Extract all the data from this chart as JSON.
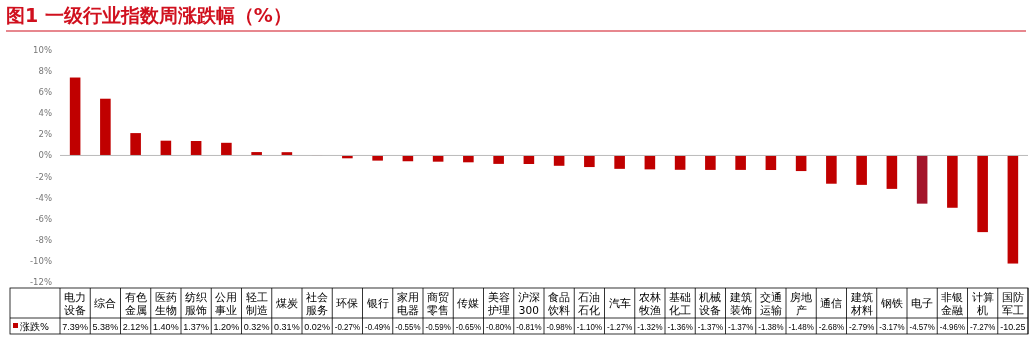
{
  "chart_data": {
    "type": "bar",
    "title": "图1 一级行业指数周涨跌幅（%）",
    "categories": [
      "电力设备",
      "综合",
      "有色金属",
      "医药生物",
      "纺织服饰",
      "公用事业",
      "轻工制造",
      "煤炭",
      "社会服务",
      "环保",
      "银行",
      "家用电器",
      "商贸零售",
      "传媒",
      "美容护理",
      "沪深300",
      "食品饮料",
      "石油石化",
      "汽车",
      "农林牧渔",
      "基础化工",
      "机械设备",
      "建筑装饰",
      "交通运输",
      "房地产",
      "通信",
      "建筑材料",
      "钢铁",
      "电子",
      "非银金融",
      "计算机",
      "国防军工"
    ],
    "series": [
      {
        "name": "涨跌%",
        "color": "#c00000",
        "colors": [
          "#c00000",
          "#c00000",
          "#c00000",
          "#c00000",
          "#c00000",
          "#c00000",
          "#c00000",
          "#c00000",
          "#c00000",
          "#c00000",
          "#c00000",
          "#c00000",
          "#c00000",
          "#c00000",
          "#c00000",
          "#c00000",
          "#c00000",
          "#c00000",
          "#c00000",
          "#c00000",
          "#c00000",
          "#c00000",
          "#c00000",
          "#c00000",
          "#c00000",
          "#c00000",
          "#c00000",
          "#c00000",
          "#a3142a",
          "#c00000",
          "#c00000",
          "#c00000"
        ],
        "values": [
          7.39,
          5.38,
          2.12,
          1.4,
          1.37,
          1.2,
          0.32,
          0.31,
          0.02,
          -0.27,
          -0.49,
          -0.55,
          -0.59,
          -0.65,
          -0.8,
          -0.81,
          -0.98,
          -1.1,
          -1.27,
          -1.32,
          -1.36,
          -1.37,
          -1.37,
          -1.38,
          -1.48,
          -2.68,
          -2.79,
          -3.17,
          -4.57,
          -4.96,
          -7.27,
          -10.25
        ],
        "value_labels": [
          "7.39%",
          "5.38%",
          "2.12%",
          "1.40%",
          "1.37%",
          "1.20%",
          "0.32%",
          "0.31%",
          "0.02%",
          "-0.27%",
          "-0.49%",
          "-0.55%",
          "-0.59%",
          "-0.65%",
          "-0.80%",
          "-0.81%",
          "-0.98%",
          "-1.10%",
          "-1.27%",
          "-1.32%",
          "-1.36%",
          "-1.37%",
          "-1.37%",
          "-1.38%",
          "-1.48%",
          "-2.68%",
          "-2.79%",
          "-3.17%",
          "-4.57%",
          "-4.96%",
          "-7.27%",
          "-10.25"
        ]
      }
    ],
    "ylim": [
      -12,
      10
    ],
    "yticks": [
      {
        "value": -12,
        "label": "-12%"
      },
      {
        "value": -10,
        "label": "-10%"
      },
      {
        "value": -8,
        "label": "-8%"
      },
      {
        "value": -6,
        "label": "-6%"
      },
      {
        "value": -4,
        "label": "-4%"
      },
      {
        "value": -2,
        "label": "-2%"
      },
      {
        "value": 0,
        "label": "0%"
      },
      {
        "value": 2,
        "label": "2%"
      },
      {
        "value": 4,
        "label": "4%"
      },
      {
        "value": 6,
        "label": "6%"
      },
      {
        "value": 8,
        "label": "8%"
      },
      {
        "value": 10,
        "label": "10%"
      }
    ],
    "legend": "bottom"
  }
}
